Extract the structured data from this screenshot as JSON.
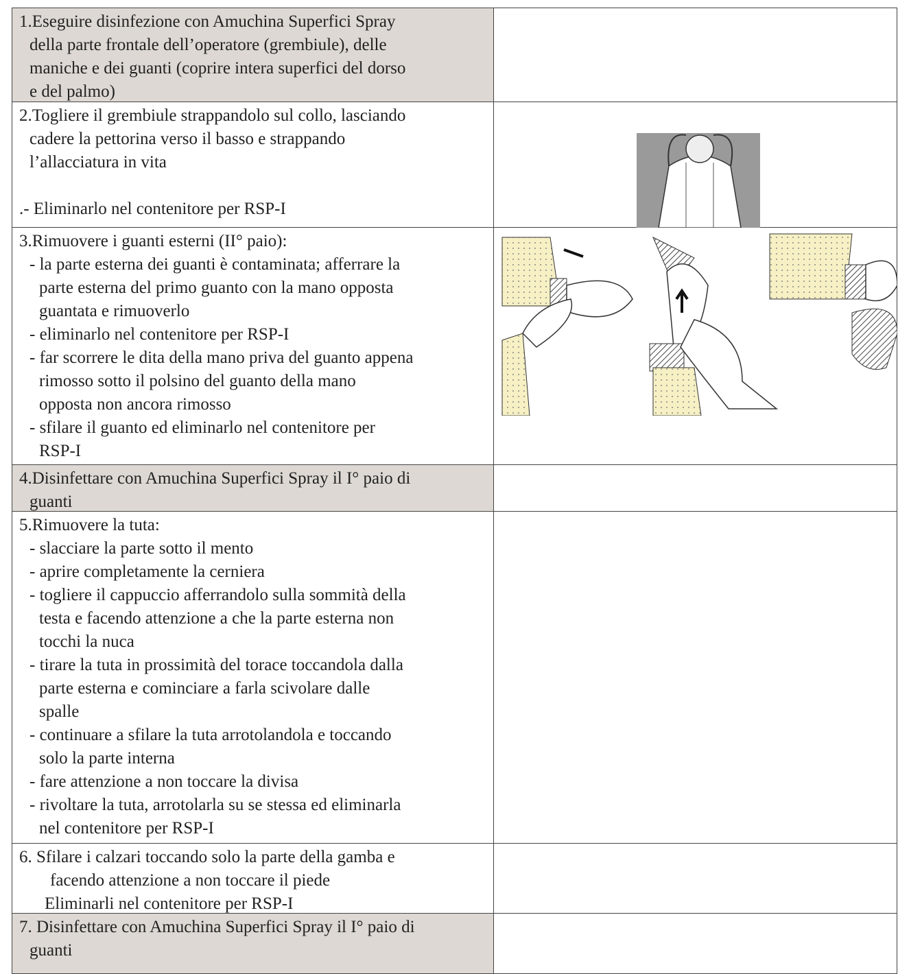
{
  "table": {
    "rows": [
      {
        "lines": [
          "1.Eseguire disinfezione con Amuchina Superfici Spray",
          "della parte frontale dell’operatore (grembiule), delle",
          "maniche e dei guanti (coprire intera superfici del dorso",
          "e del palmo)"
        ]
      },
      {
        "lines": [
          "2.Togliere il grembiule strappandolo sul collo, lasciando",
          "cadere la pettorina verso il basso e strappando",
          "l’allacciatura in vita",
          ".- Eliminarlo nel contenitore per RSP-I"
        ]
      },
      {
        "lines": [
          "3.Rimuovere i guanti esterni (II° paio):",
          "- la parte esterna dei guanti è contaminata; afferrare la",
          "parte esterna del primo guanto con la mano opposta",
          "guantata e rimuoverlo",
          "- eliminarlo nel contenitore per RSP-I",
          "- far scorrere le dita della mano priva del guanto appena",
          "rimosso sotto il polsino del guanto della mano",
          "opposta non ancora rimosso",
          "- sfilare il guanto ed eliminarlo nel contenitore per",
          "RSP-I"
        ]
      },
      {
        "lines": [
          "4.Disinfettare con Amuchina Superfici Spray il I° paio di",
          "guanti"
        ]
      },
      {
        "lines": [
          "5.Rimuovere la tuta:",
          "- slacciare la parte sotto il mento",
          "- aprire completamente la cerniera",
          "- togliere il cappuccio afferrandolo sulla sommità della",
          "testa e facendo attenzione a che la parte esterna non",
          "tocchi la nuca",
          "- tirare la tuta in prossimità del torace toccandola dalla",
          "parte esterna e cominciare a farla scivolare dalle",
          "spalle",
          "- continuare a sfilare la tuta arrotolandola e toccando",
          "solo la parte interna",
          "- fare attenzione a non toccare la divisa",
          "- rivoltare la tuta, arrotolarla su se stessa ed eliminarla",
          "nel contenitore per RSP-I"
        ]
      },
      {
        "lines": [
          "6. Sfilare i calzari toccando solo la parte della gamba e",
          "facendo attenzione a non toccare il piede",
          "Eliminarli nel contenitore per RSP-I"
        ]
      },
      {
        "lines": [
          "7. Disinfettare con Amuchina Superfici Spray il I° paio di",
          "guanti"
        ]
      }
    ]
  }
}
